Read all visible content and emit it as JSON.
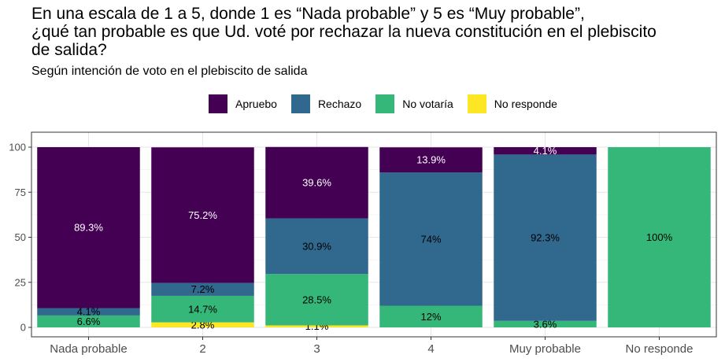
{
  "title_lines": [
    "En una escala de 1 a 5, donde 1 es “Nada probable” y 5 es “Muy probable”,",
    "¿qué tan probable es que Ud. voté por rechazar la nueva constitución en el plebiscito",
    "de salida?"
  ],
  "subtitle": "Según intención de voto en el plebiscito de salida",
  "colors": {
    "Apruebo": "#440154",
    "Rechazo": "#31688e",
    "No votaría": "#35b779",
    "No responde": "#fde725"
  },
  "label_colors": {
    "Apruebo": "#ffffff",
    "Rechazo": "#000000",
    "No votaría": "#000000",
    "No responde": "#000000"
  },
  "chart_data": {
    "type": "bar",
    "stacked": true,
    "categories": [
      "Nada probable",
      "2",
      "3",
      "4",
      "Muy probable",
      "No responde"
    ],
    "legend": [
      "Apruebo",
      "Rechazo",
      "No votaría",
      "No responde"
    ],
    "stack_order_bottom_to_top": [
      "No responde",
      "No votaría",
      "Rechazo",
      "Apruebo"
    ],
    "series": [
      {
        "name": "Apruebo",
        "values": [
          89.3,
          75.2,
          39.6,
          13.9,
          4.1,
          0
        ],
        "labels": [
          "89.3%",
          "75.2%",
          "39.6%",
          "13.9%",
          "4.1%",
          ""
        ]
      },
      {
        "name": "Rechazo",
        "values": [
          4.1,
          7.2,
          30.9,
          74,
          92.3,
          0
        ],
        "labels": [
          "4.1%",
          "7.2%",
          "30.9%",
          "74%",
          "92.3%",
          ""
        ]
      },
      {
        "name": "No votaría",
        "values": [
          6.6,
          14.7,
          28.5,
          12,
          3.6,
          100
        ],
        "labels": [
          "6.6%",
          "14.7%",
          "28.5%",
          "12%",
          "3.6%",
          "100%"
        ]
      },
      {
        "name": "No responde",
        "values": [
          0,
          2.8,
          1.1,
          0,
          0,
          0
        ],
        "labels": [
          "",
          "2.8%",
          "1.1%",
          "",
          "",
          ""
        ]
      }
    ],
    "ylim": [
      0,
      100
    ],
    "yticks": [
      "0",
      "25",
      "50",
      "75",
      "100"
    ],
    "grid": true,
    "legend_position": "top"
  }
}
